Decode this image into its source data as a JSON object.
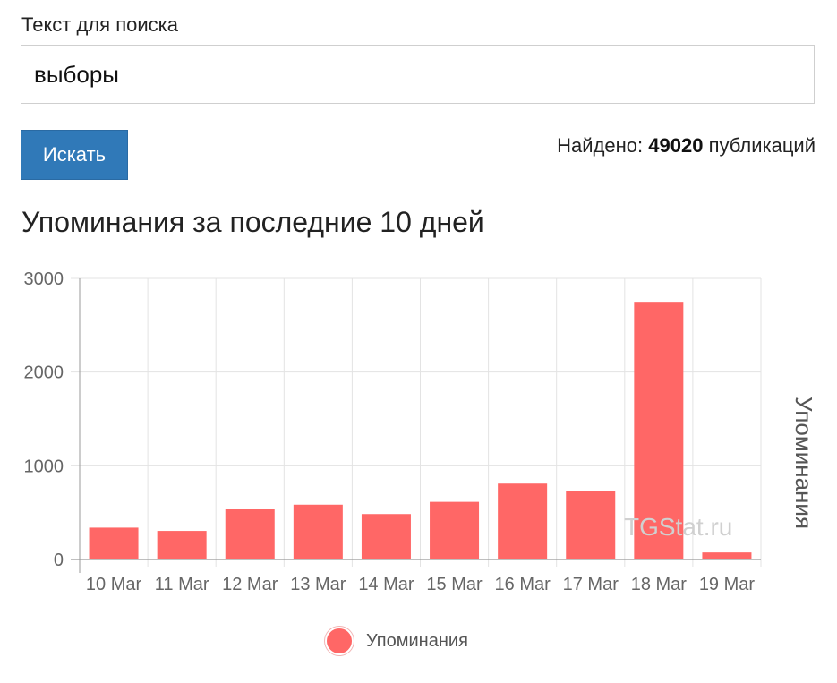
{
  "search": {
    "label": "Текст для поиска",
    "value": "выборы",
    "button_label": "Искать"
  },
  "results": {
    "prefix": "Найдено:",
    "count": "49020",
    "suffix": "публикаций"
  },
  "chart_title": "Упоминания за последние 10 дней",
  "watermark": "TGStat.ru",
  "legend": {
    "label": "Упоминания"
  },
  "colors": {
    "bar": "#ff6766",
    "button": "#3079b8",
    "grid": "#e3e3e3",
    "axis": "#999999"
  },
  "chart_data": {
    "type": "bar",
    "categories": [
      "10 Mar",
      "11 Mar",
      "12 Mar",
      "13 Mar",
      "14 Mar",
      "15 Mar",
      "16 Mar",
      "17 Mar",
      "18 Mar",
      "19 Mar"
    ],
    "series": [
      {
        "name": "Упоминания",
        "values": [
          340,
          305,
          535,
          585,
          485,
          615,
          810,
          730,
          2750,
          75
        ]
      }
    ],
    "ylabel": "Упоминания",
    "ylim": [
      0,
      3000
    ],
    "yticks": [
      0,
      1000,
      2000,
      3000
    ],
    "ytick_labels": [
      "0",
      "1000",
      "2000",
      "3000"
    ],
    "grid": true,
    "ylabel_side": "right",
    "legend_position": "bottom"
  }
}
